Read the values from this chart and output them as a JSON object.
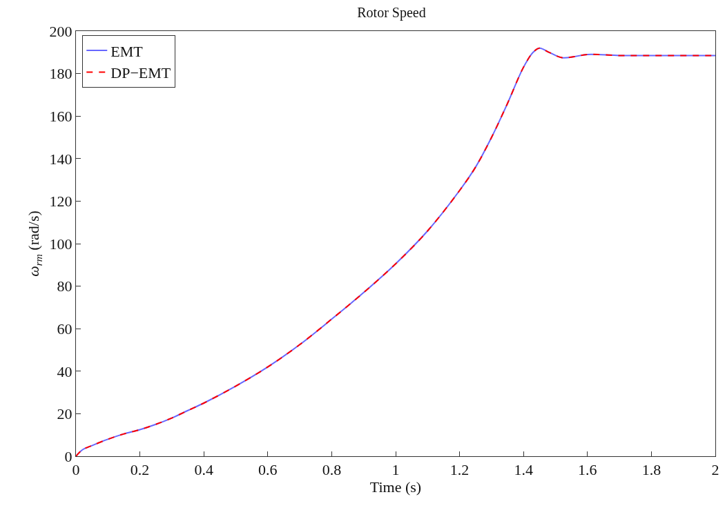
{
  "chart_data": {
    "type": "line",
    "title": "Rotor Speed",
    "xlabel": "Time (s)",
    "ylabel": "ω$_{rm}$ (rad/s)",
    "x": [
      0,
      0.02,
      0.05,
      0.1,
      0.15,
      0.2,
      0.25,
      0.3,
      0.35,
      0.4,
      0.5,
      0.6,
      0.7,
      0.8,
      0.9,
      1.0,
      1.1,
      1.2,
      1.25,
      1.3,
      1.35,
      1.4,
      1.43,
      1.45,
      1.48,
      1.52,
      1.56,
      1.6,
      1.7,
      1.8,
      2.0
    ],
    "series": [
      {
        "name": "EMT",
        "color": "#6666ff",
        "line_style": "solid",
        "values": [
          0,
          3,
          5,
          8,
          10.5,
          12.5,
          15,
          18,
          21.5,
          25,
          33,
          42,
          52.5,
          64.5,
          77,
          90.5,
          106,
          125,
          136,
          150,
          166,
          183,
          190,
          192,
          190,
          187.5,
          188,
          189,
          188.5,
          188.5,
          188.5
        ]
      },
      {
        "name": "DP−EMT",
        "color": "#ff0000",
        "line_style": "dashed",
        "values": [
          0,
          3,
          5,
          8,
          10.5,
          12.5,
          15,
          18,
          21.5,
          25,
          33,
          42,
          52.5,
          64.5,
          77,
          90.5,
          106,
          125,
          136,
          150,
          166,
          183,
          190,
          192,
          190,
          187.5,
          188,
          189,
          188.5,
          188.5,
          188.5
        ]
      }
    ],
    "xlim": [
      0,
      2
    ],
    "xticks": [
      0,
      0.2,
      0.4,
      0.6,
      0.8,
      1,
      1.2,
      1.4,
      1.6,
      1.8,
      2
    ],
    "ylim": [
      0,
      200
    ],
    "yticks": [
      0,
      20,
      40,
      60,
      80,
      100,
      120,
      140,
      160,
      180,
      200
    ],
    "legend": "top left",
    "marker": "none"
  }
}
